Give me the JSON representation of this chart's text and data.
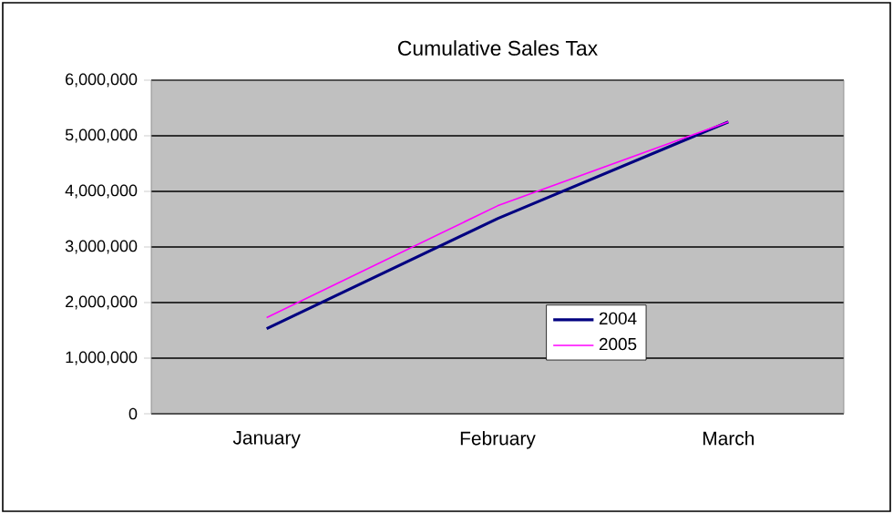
{
  "chart_data": {
    "type": "line",
    "title": "Cumulative Sales Tax",
    "categories": [
      "January",
      "February",
      "March"
    ],
    "series": [
      {
        "name": "2004",
        "color": "#000080",
        "values": [
          1530000,
          3510000,
          5250000
        ]
      },
      {
        "name": "2005",
        "color": "#ff00ff",
        "values": [
          1730000,
          3740000,
          5250000
        ]
      }
    ],
    "ylim": [
      0,
      6000000
    ],
    "yticks": [
      0,
      {
        "value": 1000000,
        "label": "1,000,000"
      },
      {
        "value": 2000000,
        "label": "2,000,000"
      },
      {
        "value": 3000000,
        "label": "3,000,000"
      },
      {
        "value": 4000000,
        "label": "4,000,000"
      },
      {
        "value": 5000000,
        "label": "5,000,000"
      },
      {
        "value": 6000000,
        "label": "6,000,000"
      }
    ],
    "grid": "y",
    "legend": "bottom right",
    "line_style": "solid"
  }
}
